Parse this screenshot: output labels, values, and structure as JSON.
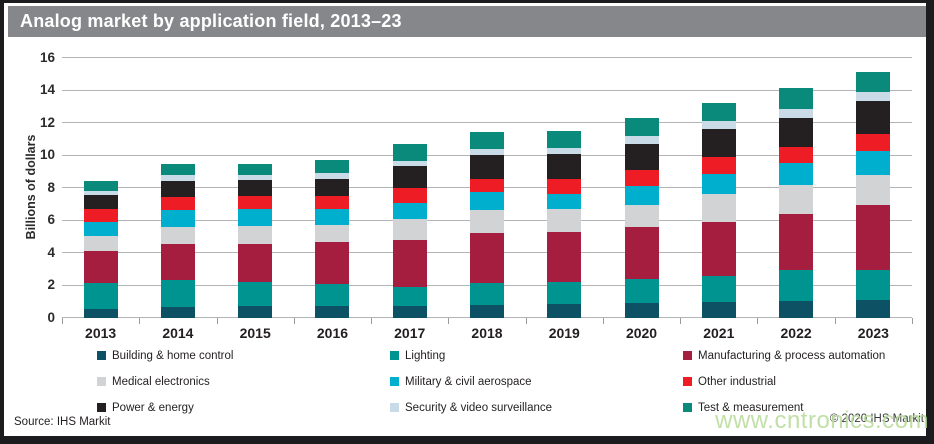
{
  "header": {
    "title": "Analog market by application field, 2013–23"
  },
  "footer": {
    "source": "Source: IHS Markit",
    "copyright": "© 2020 IHS Markit",
    "watermark": "www.cntronics.com"
  },
  "colors": {
    "title_bar_bg": "#85878a",
    "title_text": "#ffffff",
    "gridline": "#b2b4b6",
    "axis_text": "#2d2a2b",
    "frame": "#1c1c1e",
    "watermark_green": "#b9dc9c"
  },
  "chart_data": {
    "type": "bar",
    "stacked": true,
    "title": "Analog market by application field, 2013–23",
    "ylabel": "Billions of dollars",
    "ylim": [
      0,
      16
    ],
    "yticks": [
      0,
      2,
      4,
      6,
      8,
      10,
      12,
      14,
      16
    ],
    "grid": true,
    "legend_position": "bottom",
    "categories": [
      "2013",
      "2014",
      "2015",
      "2016",
      "2017",
      "2018",
      "2019",
      "2020",
      "2021",
      "2022",
      "2023"
    ],
    "series": [
      {
        "name": "Building & home control",
        "color": "#0d5264",
        "values": [
          0.55,
          0.65,
          0.7,
          0.7,
          0.7,
          0.8,
          0.85,
          0.9,
          0.95,
          1.0,
          1.1
        ]
      },
      {
        "name": "Lighting",
        "color": "#009490",
        "values": [
          1.55,
          1.65,
          1.5,
          1.35,
          1.2,
          1.3,
          1.35,
          1.45,
          1.6,
          1.9,
          1.85
        ]
      },
      {
        "name": "Manufacturing & process automation",
        "color": "#a51e3f",
        "values": [
          2.0,
          2.2,
          2.3,
          2.6,
          2.9,
          3.1,
          3.05,
          3.2,
          3.35,
          3.5,
          4.0
        ]
      },
      {
        "name": "Medical electronics",
        "color": "#d2d3d5",
        "values": [
          0.9,
          1.1,
          1.15,
          1.05,
          1.25,
          1.4,
          1.4,
          1.4,
          1.7,
          1.75,
          1.8
        ]
      },
      {
        "name": "Military & civil aerospace",
        "color": "#00aecd",
        "values": [
          0.85,
          1.0,
          1.0,
          0.95,
          1.0,
          1.1,
          0.95,
          1.15,
          1.25,
          1.35,
          1.5
        ]
      },
      {
        "name": "Other industrial",
        "color": "#ee1c25",
        "values": [
          0.85,
          0.8,
          0.8,
          0.8,
          0.9,
          0.8,
          0.95,
          0.95,
          1.0,
          1.0,
          1.05
        ]
      },
      {
        "name": "Power & energy",
        "color": "#241f20",
        "values": [
          0.85,
          1.0,
          1.0,
          1.1,
          1.35,
          1.5,
          1.5,
          1.6,
          1.75,
          1.8,
          2.05
        ]
      },
      {
        "name": "Security & video surveillance",
        "color": "#c9dbe7",
        "values": [
          0.25,
          0.35,
          0.3,
          0.35,
          0.35,
          0.4,
          0.4,
          0.5,
          0.5,
          0.55,
          0.55
        ]
      },
      {
        "name": "Test & measurement",
        "color": "#0a8a7a",
        "values": [
          0.6,
          0.7,
          0.7,
          0.8,
          1.0,
          1.0,
          1.0,
          1.15,
          1.1,
          1.3,
          1.2
        ]
      }
    ]
  }
}
